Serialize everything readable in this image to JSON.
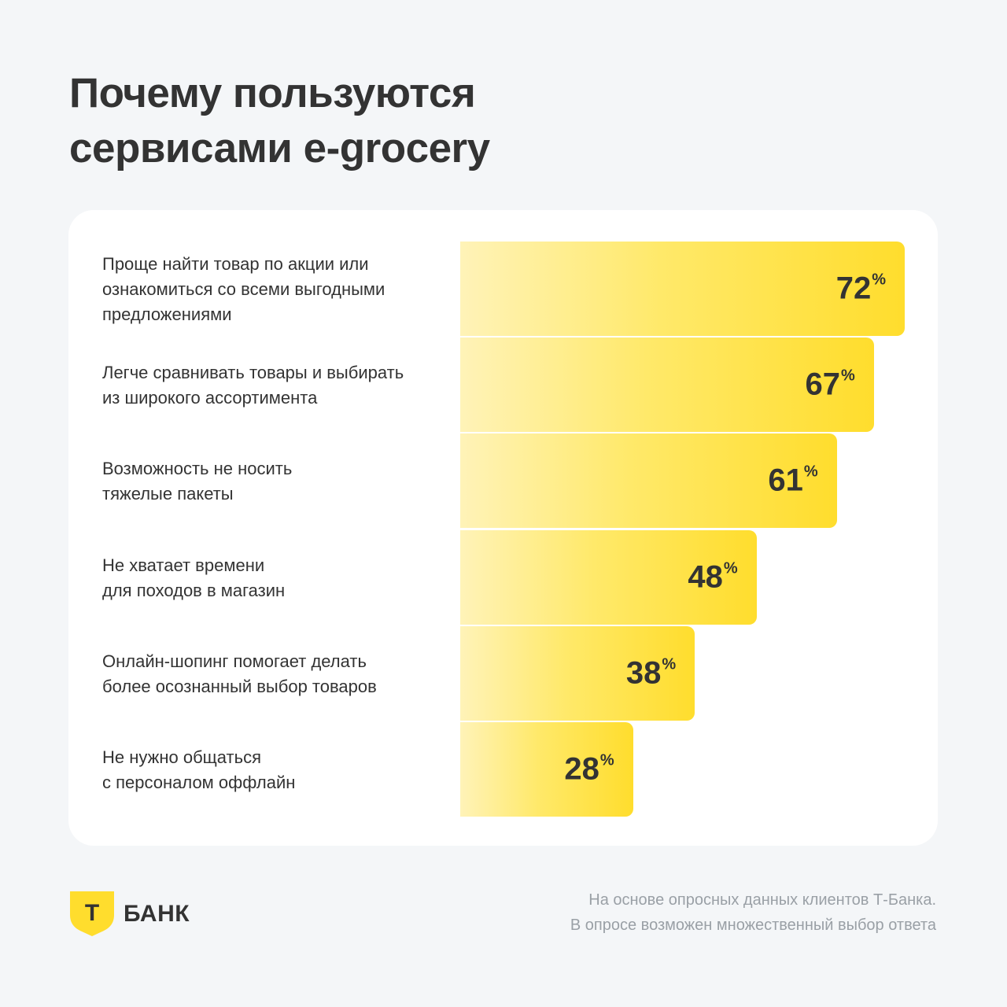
{
  "title_lines": [
    "Почему пользуются",
    "сервисами e-grocery"
  ],
  "chart_data": {
    "type": "bar",
    "orientation": "horizontal",
    "categories": [
      "Проще найти товар по акции или ознакомиться со всеми выгодными предложениями",
      "Легче сравнивать товары и выбирать из широкого ассортимента",
      "Возможность не носить тяжелые пакеты",
      "Не хватает времени для походов в магазин",
      "Онлайн-шопинг помогает делать более осознанный выбор товаров",
      "Не нужно общаться с персоналом оффлайн"
    ],
    "values": [
      72,
      67,
      61,
      48,
      38,
      28
    ],
    "value_suffix": "%",
    "bar_color": "#ffdd2d"
  },
  "labels": [
    [
      "Проще найти товар по акции или",
      "ознакомиться со всеми выгодными",
      "предложениями"
    ],
    [
      "Легче сравнивать товары и выбирать",
      "из широкого ассортимента"
    ],
    [
      "Возможность не носить",
      "тяжелые пакеты"
    ],
    [
      "Не хватает времени",
      "для походов в магазин"
    ],
    [
      "Онлайн-шопинг помогает делать",
      "более осознанный выбор товаров"
    ],
    [
      "Не нужно общаться",
      "с персоналом оффлайн"
    ]
  ],
  "logo": {
    "mark": "Т",
    "text": "БАНК",
    "icon": "shield-icon",
    "color": "#ffdd2d"
  },
  "footnote_lines": [
    "На основе опросных данных клиентов Т-Банка.",
    "В опросе возможен множественный выбор ответа"
  ]
}
